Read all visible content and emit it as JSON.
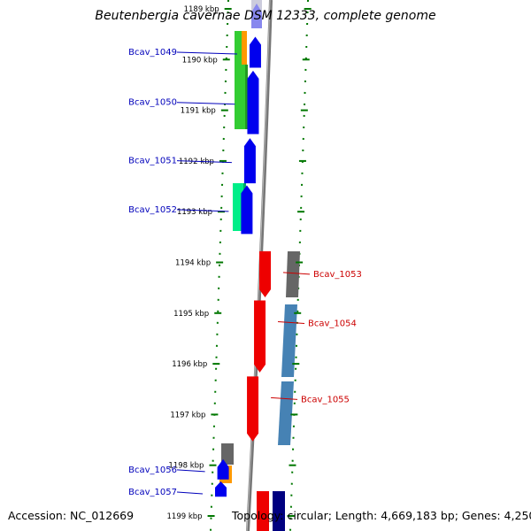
{
  "title": "Beutenbergia cavernae DSM 12333, complete genome",
  "footer": {
    "accession": "Accession: NC_012669",
    "topology": "Topology: circular; Length: 4,669,183 bp; Genes: 4,250"
  },
  "ruler": {
    "ticks": [
      {
        "label": "1189 kbp",
        "kb": 1189
      },
      {
        "label": "1190 kbp",
        "kb": 1190
      },
      {
        "label": "1191 kbp",
        "kb": 1191
      },
      {
        "label": "1192 kbp",
        "kb": 1192
      },
      {
        "label": "1193 kbp",
        "kb": 1193
      },
      {
        "label": "1194 kbp",
        "kb": 1194
      },
      {
        "label": "1195 kbp",
        "kb": 1195
      },
      {
        "label": "1196 kbp",
        "kb": 1196
      },
      {
        "label": "1197 kbp",
        "kb": 1197
      },
      {
        "label": "1198 kbp",
        "kb": 1198
      },
      {
        "label": "1199 kbp",
        "kb": 1199
      }
    ]
  },
  "colors": {
    "forward_label": "#0000bb",
    "reverse_label": "#cc0000",
    "backbone": "#777777",
    "tick": "#007700",
    "forward_gene": "#0000ee",
    "reverse_gene": "#ee0000"
  },
  "genes": [
    {
      "name": "Bcav_1049",
      "strand": "+",
      "start_kb": 1189.55,
      "end_kb": 1190.16
    },
    {
      "name": "Bcav_1050",
      "strand": "+",
      "start_kb": 1190.22,
      "end_kb": 1191.47
    },
    {
      "name": "Bcav_1051",
      "strand": "+",
      "start_kb": 1191.55,
      "end_kb": 1192.44
    },
    {
      "name": "Bcav_1052",
      "strand": "+",
      "start_kb": 1192.48,
      "end_kb": 1193.44
    },
    {
      "name": "Bcav_1053",
      "strand": "-",
      "start_kb": 1193.78,
      "end_kb": 1194.69
    },
    {
      "name": "Bcav_1054",
      "strand": "-",
      "start_kb": 1194.75,
      "end_kb": 1196.17
    },
    {
      "name": "Bcav_1055",
      "strand": "-",
      "start_kb": 1196.25,
      "end_kb": 1197.53
    },
    {
      "name": "Bcav_1056",
      "strand": "+",
      "start_kb": 1197.88,
      "end_kb": 1198.28
    },
    {
      "name": "Bcav_1057",
      "strand": "+",
      "start_kb": 1198.32,
      "end_kb": 1198.62
    }
  ]
}
